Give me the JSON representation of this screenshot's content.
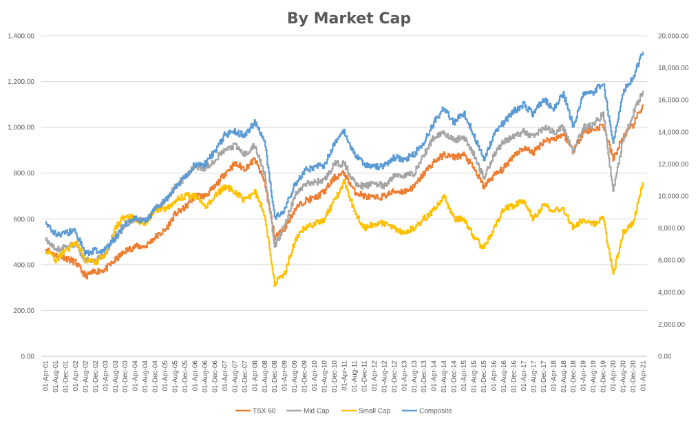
{
  "chart_data": {
    "type": "line",
    "title": "By Market Cap",
    "xlabel": "",
    "ylabel": "",
    "ylim": [
      0,
      1400
    ],
    "y2lim": [
      0,
      20000
    ],
    "y_ticks": [
      "0.00",
      "200.00",
      "400.00",
      "600.00",
      "800.00",
      "1,000.00",
      "1,200.00",
      "1,400.00"
    ],
    "y2_ticks": [
      "0.00",
      "2,000.00",
      "4,000.00",
      "6,000.00",
      "8,000.00",
      "10,000.00",
      "12,000.00",
      "14,000.00",
      "16,000.00",
      "18,000.00",
      "20,000.00"
    ],
    "x_tick_labels": [
      "01-Apr-01",
      "01-Aug-01",
      "01-Dec-01",
      "01-Apr-02",
      "01-Aug-02",
      "01-Dec-02",
      "01-Apr-03",
      "01-Aug-03",
      "01-Dec-03",
      "01-Apr-04",
      "01-Aug-04",
      "01-Dec-04",
      "01-Apr-05",
      "01-Aug-05",
      "01-Dec-05",
      "01-Apr-06",
      "01-Aug-06",
      "01-Dec-06",
      "01-Apr-07",
      "01-Aug-07",
      "01-Dec-07",
      "01-Apr-08",
      "01-Aug-08",
      "01-Dec-08",
      "01-Apr-09",
      "01-Aug-09",
      "01-Dec-09",
      "01-Apr-10",
      "01-Aug-10",
      "01-Dec-10",
      "01-Apr-11",
      "01-Aug-11",
      "01-Dec-11",
      "01-Apr-12",
      "01-Aug-12",
      "01-Dec-12",
      "01-Apr-13",
      "01-Aug-13",
      "01-Dec-13",
      "01-Apr-14",
      "01-Aug-14",
      "01-Dec-14",
      "01-Apr-15",
      "01-Aug-15",
      "01-Dec-15",
      "01-Apr-16",
      "01-Aug-16",
      "01-Dec-16",
      "01-Apr-17",
      "01-Aug-17",
      "01-Dec-17",
      "01-Apr-18",
      "01-Aug-18",
      "01-Dec-18",
      "01-Apr-19",
      "01-Aug-19",
      "01-Dec-19",
      "01-Apr-20",
      "01-Aug-20",
      "01-Dec-20",
      "01-Apr-21"
    ],
    "legend_position": "bottom",
    "grid": true,
    "series": [
      {
        "name": "TSX 60",
        "axis": "left",
        "color": "#ed7d31",
        "points": [
          [
            "01-Apr-01",
            470
          ],
          [
            "01-Aug-01",
            440
          ],
          [
            "01-Dec-01",
            430
          ],
          [
            "01-Apr-02",
            410
          ],
          [
            "01-Aug-02",
            350
          ],
          [
            "01-Dec-02",
            370
          ],
          [
            "01-Apr-03",
            380
          ],
          [
            "01-Aug-03",
            420
          ],
          [
            "01-Dec-03",
            460
          ],
          [
            "01-Apr-04",
            480
          ],
          [
            "01-Aug-04",
            480
          ],
          [
            "01-Dec-04",
            520
          ],
          [
            "01-Apr-05",
            550
          ],
          [
            "01-Aug-05",
            620
          ],
          [
            "01-Dec-05",
            650
          ],
          [
            "01-Apr-06",
            700
          ],
          [
            "01-Aug-06",
            700
          ],
          [
            "01-Dec-06",
            740
          ],
          [
            "01-Apr-07",
            800
          ],
          [
            "01-Aug-07",
            840
          ],
          [
            "01-Dec-07",
            820
          ],
          [
            "01-Apr-08",
            860
          ],
          [
            "01-Aug-08",
            760
          ],
          [
            "01-Dec-08",
            520
          ],
          [
            "01-Apr-09",
            560
          ],
          [
            "01-Aug-09",
            640
          ],
          [
            "01-Dec-09",
            680
          ],
          [
            "01-Apr-10",
            690
          ],
          [
            "01-Aug-10",
            720
          ],
          [
            "01-Dec-10",
            780
          ],
          [
            "01-Apr-11",
            800
          ],
          [
            "01-Aug-11",
            720
          ],
          [
            "01-Dec-11",
            700
          ],
          [
            "01-Apr-12",
            690
          ],
          [
            "01-Aug-12",
            700
          ],
          [
            "01-Dec-12",
            720
          ],
          [
            "01-Apr-13",
            720
          ],
          [
            "01-Aug-13",
            740
          ],
          [
            "01-Dec-13",
            800
          ],
          [
            "01-Apr-14",
            850
          ],
          [
            "01-Aug-14",
            880
          ],
          [
            "01-Dec-14",
            870
          ],
          [
            "01-Apr-15",
            880
          ],
          [
            "01-Aug-15",
            820
          ],
          [
            "01-Dec-15",
            740
          ],
          [
            "01-Apr-16",
            790
          ],
          [
            "01-Aug-16",
            820
          ],
          [
            "01-Dec-16",
            880
          ],
          [
            "01-Apr-17",
            910
          ],
          [
            "01-Aug-17",
            890
          ],
          [
            "01-Dec-17",
            940
          ],
          [
            "01-Apr-18",
            950
          ],
          [
            "01-Aug-18",
            970
          ],
          [
            "01-Dec-18",
            900
          ],
          [
            "01-Apr-19",
            980
          ],
          [
            "01-Aug-19",
            990
          ],
          [
            "01-Dec-19",
            1010
          ],
          [
            "01-Apr-20",
            860
          ],
          [
            "01-Aug-20",
            960
          ],
          [
            "01-Dec-20",
            1010
          ],
          [
            "01-Apr-21",
            1100
          ]
        ]
      },
      {
        "name": "Mid Cap",
        "axis": "left",
        "color": "#a5a5a5",
        "points": [
          [
            "01-Apr-01",
            510
          ],
          [
            "01-Aug-01",
            460
          ],
          [
            "01-Dec-01",
            480
          ],
          [
            "01-Apr-02",
            490
          ],
          [
            "01-Aug-02",
            420
          ],
          [
            "01-Dec-02",
            420
          ],
          [
            "01-Apr-03",
            450
          ],
          [
            "01-Aug-03",
            530
          ],
          [
            "01-Dec-03",
            580
          ],
          [
            "01-Apr-04",
            600
          ],
          [
            "01-Aug-04",
            590
          ],
          [
            "01-Dec-04",
            640
          ],
          [
            "01-Apr-05",
            680
          ],
          [
            "01-Aug-05",
            740
          ],
          [
            "01-Dec-05",
            780
          ],
          [
            "01-Apr-06",
            830
          ],
          [
            "01-Aug-06",
            820
          ],
          [
            "01-Dec-06",
            860
          ],
          [
            "01-Apr-07",
            900
          ],
          [
            "01-Aug-07",
            920
          ],
          [
            "01-Dec-07",
            880
          ],
          [
            "01-Apr-08",
            920
          ],
          [
            "01-Aug-08",
            800
          ],
          [
            "01-Dec-08",
            480
          ],
          [
            "01-Apr-09",
            570
          ],
          [
            "01-Aug-09",
            700
          ],
          [
            "01-Dec-09",
            750
          ],
          [
            "01-Apr-10",
            760
          ],
          [
            "01-Aug-10",
            770
          ],
          [
            "01-Dec-10",
            840
          ],
          [
            "01-Apr-11",
            840
          ],
          [
            "01-Aug-11",
            760
          ],
          [
            "01-Dec-11",
            740
          ],
          [
            "01-Apr-12",
            760
          ],
          [
            "01-Aug-12",
            740
          ],
          [
            "01-Dec-12",
            790
          ],
          [
            "01-Apr-13",
            790
          ],
          [
            "01-Aug-13",
            800
          ],
          [
            "01-Dec-13",
            880
          ],
          [
            "01-Apr-14",
            960
          ],
          [
            "01-Aug-14",
            980
          ],
          [
            "01-Dec-14",
            940
          ],
          [
            "01-Apr-15",
            960
          ],
          [
            "01-Aug-15",
            880
          ],
          [
            "01-Dec-15",
            780
          ],
          [
            "01-Apr-16",
            880
          ],
          [
            "01-Aug-16",
            940
          ],
          [
            "01-Dec-16",
            960
          ],
          [
            "01-Apr-17",
            980
          ],
          [
            "01-Aug-17",
            960
          ],
          [
            "01-Dec-17",
            1000
          ],
          [
            "01-Apr-18",
            980
          ],
          [
            "01-Aug-18",
            1000
          ],
          [
            "01-Dec-18",
            890
          ],
          [
            "01-Apr-19",
            1000
          ],
          [
            "01-Aug-19",
            1010
          ],
          [
            "01-Dec-19",
            1060
          ],
          [
            "01-Apr-20",
            720
          ],
          [
            "01-Aug-20",
            950
          ],
          [
            "01-Dec-20",
            1060
          ],
          [
            "01-Apr-21",
            1160
          ]
        ]
      },
      {
        "name": "Small Cap",
        "axis": "left",
        "color": "#ffc000",
        "points": [
          [
            "01-Apr-01",
            460
          ],
          [
            "01-Aug-01",
            420
          ],
          [
            "01-Dec-01",
            460
          ],
          [
            "01-Apr-02",
            500
          ],
          [
            "01-Aug-02",
            420
          ],
          [
            "01-Dec-02",
            410
          ],
          [
            "01-Apr-03",
            440
          ],
          [
            "01-Aug-03",
            560
          ],
          [
            "01-Dec-03",
            620
          ],
          [
            "01-Apr-04",
            600
          ],
          [
            "01-Aug-04",
            580
          ],
          [
            "01-Dec-04",
            640
          ],
          [
            "01-Apr-05",
            640
          ],
          [
            "01-Aug-05",
            680
          ],
          [
            "01-Dec-05",
            700
          ],
          [
            "01-Apr-06",
            700
          ],
          [
            "01-Aug-06",
            650
          ],
          [
            "01-Dec-06",
            700
          ],
          [
            "01-Apr-07",
            740
          ],
          [
            "01-Aug-07",
            720
          ],
          [
            "01-Dec-07",
            680
          ],
          [
            "01-Apr-08",
            720
          ],
          [
            "01-Aug-08",
            620
          ],
          [
            "01-Dec-08",
            320
          ],
          [
            "01-Apr-09",
            360
          ],
          [
            "01-Aug-09",
            500
          ],
          [
            "01-Dec-09",
            560
          ],
          [
            "01-Apr-10",
            580
          ],
          [
            "01-Aug-10",
            600
          ],
          [
            "01-Dec-10",
            680
          ],
          [
            "01-Apr-11",
            760
          ],
          [
            "01-Aug-11",
            640
          ],
          [
            "01-Dec-11",
            560
          ],
          [
            "01-Apr-12",
            580
          ],
          [
            "01-Aug-12",
            580
          ],
          [
            "01-Dec-12",
            560
          ],
          [
            "01-Apr-13",
            540
          ],
          [
            "01-Aug-13",
            560
          ],
          [
            "01-Dec-13",
            600
          ],
          [
            "01-Apr-14",
            640
          ],
          [
            "01-Aug-14",
            700
          ],
          [
            "01-Dec-14",
            600
          ],
          [
            "01-Apr-15",
            600
          ],
          [
            "01-Aug-15",
            520
          ],
          [
            "01-Dec-15",
            470
          ],
          [
            "01-Apr-16",
            560
          ],
          [
            "01-Aug-16",
            640
          ],
          [
            "01-Dec-16",
            660
          ],
          [
            "01-Apr-17",
            680
          ],
          [
            "01-Aug-17",
            600
          ],
          [
            "01-Dec-17",
            660
          ],
          [
            "01-Apr-18",
            640
          ],
          [
            "01-Aug-18",
            640
          ],
          [
            "01-Dec-18",
            560
          ],
          [
            "01-Apr-19",
            600
          ],
          [
            "01-Aug-19",
            580
          ],
          [
            "01-Dec-19",
            600
          ],
          [
            "01-Apr-20",
            360
          ],
          [
            "01-Aug-20",
            540
          ],
          [
            "01-Dec-20",
            580
          ],
          [
            "01-Apr-21",
            760
          ]
        ]
      },
      {
        "name": "Composite",
        "axis": "right",
        "color": "#5b9bd5",
        "points": [
          [
            "01-Apr-01",
            8400
          ],
          [
            "01-Aug-01",
            7600
          ],
          [
            "01-Dec-01",
            7700
          ],
          [
            "01-Apr-02",
            7800
          ],
          [
            "01-Aug-02",
            6400
          ],
          [
            "01-Dec-02",
            6600
          ],
          [
            "01-Apr-03",
            6600
          ],
          [
            "01-Aug-03",
            7400
          ],
          [
            "01-Dec-03",
            8200
          ],
          [
            "01-Apr-04",
            8600
          ],
          [
            "01-Aug-04",
            8400
          ],
          [
            "01-Dec-04",
            9200
          ],
          [
            "01-Apr-05",
            9700
          ],
          [
            "01-Aug-05",
            10600
          ],
          [
            "01-Dec-05",
            11200
          ],
          [
            "01-Apr-06",
            12000
          ],
          [
            "01-Aug-06",
            12000
          ],
          [
            "01-Dec-06",
            12800
          ],
          [
            "01-Apr-07",
            13800
          ],
          [
            "01-Aug-07",
            14000
          ],
          [
            "01-Dec-07",
            13800
          ],
          [
            "01-Apr-08",
            14600
          ],
          [
            "01-Aug-08",
            13400
          ],
          [
            "01-Dec-08",
            8600
          ],
          [
            "01-Apr-09",
            9200
          ],
          [
            "01-Aug-09",
            10700
          ],
          [
            "01-Dec-09",
            11600
          ],
          [
            "01-Apr-10",
            11800
          ],
          [
            "01-Aug-10",
            11900
          ],
          [
            "01-Dec-10",
            13300
          ],
          [
            "01-Apr-11",
            14000
          ],
          [
            "01-Aug-11",
            12600
          ],
          [
            "01-Dec-11",
            12000
          ],
          [
            "01-Apr-12",
            11800
          ],
          [
            "01-Aug-12",
            11900
          ],
          [
            "01-Dec-12",
            12400
          ],
          [
            "01-Apr-13",
            12300
          ],
          [
            "01-Aug-13",
            12600
          ],
          [
            "01-Dec-13",
            13400
          ],
          [
            "01-Apr-14",
            14600
          ],
          [
            "01-Aug-14",
            15500
          ],
          [
            "01-Dec-14",
            14600
          ],
          [
            "01-Apr-15",
            15200
          ],
          [
            "01-Aug-15",
            13800
          ],
          [
            "01-Dec-15",
            12300
          ],
          [
            "01-Apr-16",
            13800
          ],
          [
            "01-Aug-16",
            14600
          ],
          [
            "01-Dec-16",
            15300
          ],
          [
            "01-Apr-17",
            15700
          ],
          [
            "01-Aug-17",
            15100
          ],
          [
            "01-Dec-17",
            16100
          ],
          [
            "01-Apr-18",
            15400
          ],
          [
            "01-Aug-18",
            16400
          ],
          [
            "01-Dec-18",
            14300
          ],
          [
            "01-Apr-19",
            16400
          ],
          [
            "01-Aug-19",
            16500
          ],
          [
            "01-Dec-19",
            17100
          ],
          [
            "01-Apr-20",
            13200
          ],
          [
            "01-Aug-20",
            16500
          ],
          [
            "01-Dec-20",
            17400
          ],
          [
            "01-Apr-21",
            19000
          ]
        ]
      }
    ]
  }
}
